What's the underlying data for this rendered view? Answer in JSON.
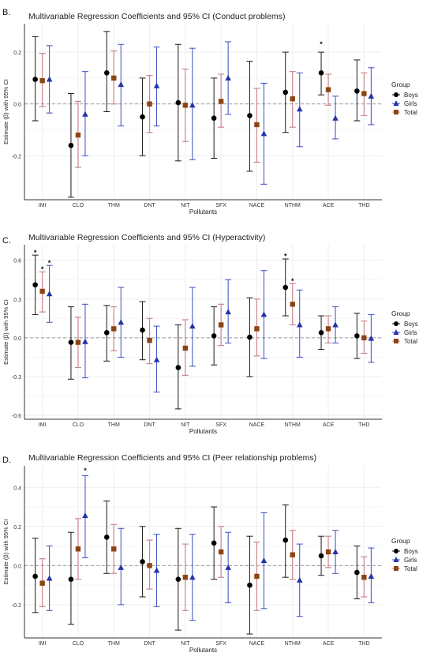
{
  "legend": {
    "title": "Group",
    "items": [
      "Boys",
      "Girls",
      "Total"
    ]
  },
  "colors": {
    "boys": "#000000",
    "girls": "#2433a8",
    "total": "#8b4513",
    "boys_err": "#1a1a1a",
    "girls_err": "#3a4dc4",
    "total_err": "#c9878a",
    "grid": "#eeeeee",
    "zero_line": "#999999"
  },
  "chart_data": [
    {
      "type": "scatter",
      "panel_label": "B.",
      "title": "Multivariable Regression Coefficients and 95% CI (Conduct problems)",
      "xlabel": "Pollutants",
      "ylabel": "Estimate (β) with 95% CI",
      "categories": [
        "IMI",
        "CLO",
        "THM",
        "DNT",
        "NIT",
        "SFX",
        "NACE",
        "NTHM",
        "ACE",
        "THD"
      ],
      "ylim": [
        -0.37,
        0.31
      ],
      "yticks": [
        0.2,
        0.0,
        -0.2
      ],
      "ytick_labels": [
        "0.2",
        "0.0",
        "-0.2"
      ],
      "legend_visible": true,
      "series": [
        {
          "name": "Boys",
          "values": [
            0.095,
            -0.16,
            0.12,
            -0.05,
            0.005,
            -0.055,
            -0.045,
            0.045,
            0.12,
            0.05
          ],
          "lower": [
            -0.065,
            -0.36,
            -0.03,
            -0.2,
            -0.22,
            -0.21,
            -0.26,
            -0.11,
            0.035,
            -0.065
          ],
          "upper": [
            0.26,
            0.04,
            0.28,
            0.1,
            0.23,
            0.1,
            0.165,
            0.2,
            0.2,
            0.17
          ]
        },
        {
          "name": "Girls",
          "values": [
            0.095,
            -0.04,
            0.075,
            0.07,
            -0.005,
            0.1,
            -0.115,
            -0.02,
            -0.055,
            0.03
          ],
          "lower": [
            -0.035,
            -0.2,
            -0.085,
            -0.085,
            -0.215,
            -0.04,
            -0.31,
            -0.165,
            -0.135,
            -0.08
          ],
          "upper": [
            0.225,
            0.125,
            0.23,
            0.22,
            0.215,
            0.24,
            0.08,
            0.12,
            0.03,
            0.14
          ]
        },
        {
          "name": "Total",
          "values": [
            0.09,
            -0.12,
            0.1,
            0.0,
            -0.005,
            0.01,
            -0.08,
            0.02,
            0.055,
            0.04
          ],
          "lower": [
            -0.01,
            -0.245,
            0.0,
            -0.11,
            -0.145,
            -0.09,
            -0.225,
            -0.09,
            -0.005,
            -0.045
          ],
          "upper": [
            0.195,
            0.01,
            0.205,
            0.11,
            0.135,
            0.115,
            0.06,
            0.125,
            0.115,
            0.12
          ]
        }
      ],
      "annotations": [
        {
          "text": "*",
          "category": "ACE",
          "series": "Boys",
          "y": 0.23
        }
      ]
    },
    {
      "type": "scatter",
      "panel_label": "C.",
      "title": "Multivariable Regression Coefficients and 95% CI (Hyperactivity)",
      "xlabel": "Pollutants",
      "ylabel": "Estimate (β) with 95% CI",
      "categories": [
        "IMI",
        "CLO",
        "THM",
        "DNT",
        "NIT",
        "SFX",
        "NACE",
        "NTHM",
        "ACE",
        "THD"
      ],
      "ylim": [
        -0.63,
        0.72
      ],
      "yticks": [
        0.6,
        0.3,
        0.0,
        -0.3,
        -0.6
      ],
      "ytick_labels": [
        "0.6",
        "0.3",
        "0.0",
        "-0.3",
        "-0.6"
      ],
      "legend_visible": true,
      "series": [
        {
          "name": "Boys",
          "values": [
            0.41,
            -0.035,
            0.04,
            0.06,
            -0.23,
            0.015,
            0.005,
            0.39,
            0.04,
            0.015
          ],
          "lower": [
            0.18,
            -0.32,
            -0.18,
            -0.17,
            -0.55,
            -0.21,
            -0.3,
            0.17,
            -0.09,
            -0.16
          ],
          "upper": [
            0.64,
            0.24,
            0.25,
            0.28,
            0.1,
            0.24,
            0.31,
            0.61,
            0.17,
            0.19
          ]
        },
        {
          "name": "Girls",
          "values": [
            0.34,
            -0.03,
            0.12,
            -0.17,
            0.09,
            0.2,
            0.18,
            0.1,
            0.1,
            -0.005
          ],
          "lower": [
            0.12,
            -0.31,
            -0.15,
            -0.42,
            -0.22,
            -0.04,
            -0.16,
            -0.15,
            -0.04,
            -0.19
          ],
          "upper": [
            0.56,
            0.26,
            0.39,
            0.09,
            0.39,
            0.45,
            0.52,
            0.37,
            0.24,
            0.18
          ]
        },
        {
          "name": "Total",
          "values": [
            0.36,
            -0.035,
            0.07,
            -0.02,
            -0.08,
            0.1,
            0.07,
            0.26,
            0.07,
            0.0
          ],
          "lower": [
            0.2,
            -0.23,
            -0.1,
            -0.2,
            -0.29,
            -0.06,
            -0.14,
            0.1,
            -0.04,
            -0.12
          ],
          "upper": [
            0.51,
            0.16,
            0.24,
            0.15,
            0.14,
            0.26,
            0.3,
            0.42,
            0.17,
            0.13
          ]
        }
      ],
      "annotations": [
        {
          "text": "*",
          "category": "IMI",
          "series": "Boys",
          "y": 0.66
        },
        {
          "text": "*",
          "category": "IMI",
          "series": "Total",
          "y": 0.53
        },
        {
          "text": "*",
          "category": "IMI",
          "series": "Girls",
          "y": 0.58
        },
        {
          "text": "*",
          "category": "NTHM",
          "series": "Boys",
          "y": 0.63
        },
        {
          "text": "*",
          "category": "NTHM",
          "series": "Total",
          "y": 0.44
        }
      ]
    },
    {
      "type": "scatter",
      "panel_label": "D.",
      "title": "Multivariable Regression Coefficients and 95% CI (Peer relationship problems)",
      "xlabel": "Pollutants",
      "ylabel": "Estimate (β) with 95% CI",
      "categories": [
        "IMI",
        "CLO",
        "THM",
        "DNT",
        "NIT",
        "SFX",
        "NACE",
        "NTHM",
        "ACE",
        "THD"
      ],
      "ylim": [
        -0.37,
        0.51
      ],
      "yticks": [
        0.4,
        0.2,
        0.0,
        -0.2
      ],
      "ytick_labels": [
        "0.4",
        "0.2",
        "0.0",
        "-0.2"
      ],
      "legend_visible": true,
      "series": [
        {
          "name": "Boys",
          "values": [
            -0.055,
            -0.07,
            0.145,
            0.02,
            -0.07,
            0.115,
            -0.1,
            0.13,
            0.05,
            -0.035
          ],
          "lower": [
            -0.24,
            -0.3,
            -0.04,
            -0.16,
            -0.33,
            -0.07,
            -0.35,
            -0.06,
            -0.05,
            -0.17
          ],
          "upper": [
            0.14,
            0.17,
            0.33,
            0.2,
            0.19,
            0.3,
            0.15,
            0.31,
            0.15,
            0.1
          ]
        },
        {
          "name": "Girls",
          "values": [
            -0.065,
            0.255,
            -0.01,
            -0.025,
            -0.06,
            -0.01,
            0.025,
            -0.075,
            0.07,
            -0.055
          ],
          "lower": [
            -0.23,
            0.04,
            -0.2,
            -0.21,
            -0.28,
            -0.19,
            -0.22,
            -0.26,
            -0.04,
            -0.19
          ],
          "upper": [
            0.1,
            0.46,
            0.19,
            0.16,
            0.16,
            0.17,
            0.27,
            0.11,
            0.18,
            0.09
          ]
        },
        {
          "name": "Total",
          "values": [
            -0.09,
            0.085,
            0.085,
            0.0,
            -0.06,
            0.07,
            -0.055,
            0.055,
            0.07,
            -0.06
          ],
          "lower": [
            -0.21,
            -0.07,
            -0.04,
            -0.12,
            -0.23,
            -0.06,
            -0.23,
            -0.07,
            -0.01,
            -0.16
          ],
          "upper": [
            0.035,
            0.24,
            0.21,
            0.13,
            0.11,
            0.2,
            0.12,
            0.18,
            0.15,
            0.045
          ]
        }
      ],
      "annotations": [
        {
          "text": "*",
          "category": "CLO",
          "series": "Girls",
          "y": 0.485
        }
      ]
    }
  ]
}
